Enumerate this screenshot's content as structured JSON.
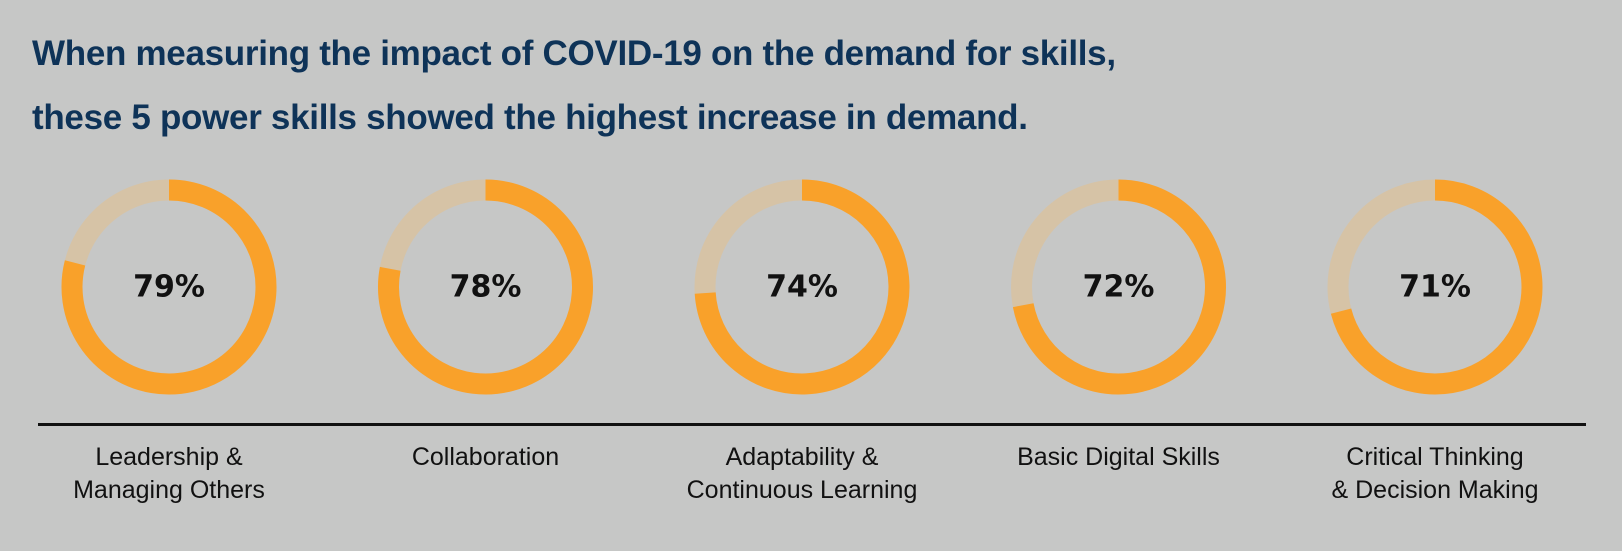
{
  "title": {
    "line1": "When measuring the impact of COVID-19 on the demand for skills,",
    "line2": "these 5 power skills showed the highest increase in demand."
  },
  "colors": {
    "background": "#c6c7c6",
    "title": "#0e3358",
    "fill": "#f9a12a",
    "track": "#d6c3a6",
    "value_text": "#111111"
  },
  "chart_data": {
    "type": "pie",
    "subtype": "donut",
    "title": "When measuring the impact of COVID-19 on the demand for skills, these 5 power skills showed the highest increase in demand.",
    "unit": "%",
    "categories": [
      "Leadership & Managing Others",
      "Collaboration",
      "Adaptability & Continuous Learning",
      "Basic Digital Skills",
      "Critical Thinking & Decision Making"
    ],
    "values": [
      79,
      78,
      74,
      72,
      71
    ],
    "value_labels": [
      "79%",
      "78%",
      "74%",
      "72%",
      "71%"
    ],
    "label_lines": [
      [
        "Leadership &",
        "Managing Others"
      ],
      [
        "Collaboration"
      ],
      [
        "Adaptability &",
        "Continuous Learning"
      ],
      [
        "Basic Digital Skills"
      ],
      [
        "Critical Thinking",
        "& Decision Making"
      ]
    ],
    "max": 100
  }
}
